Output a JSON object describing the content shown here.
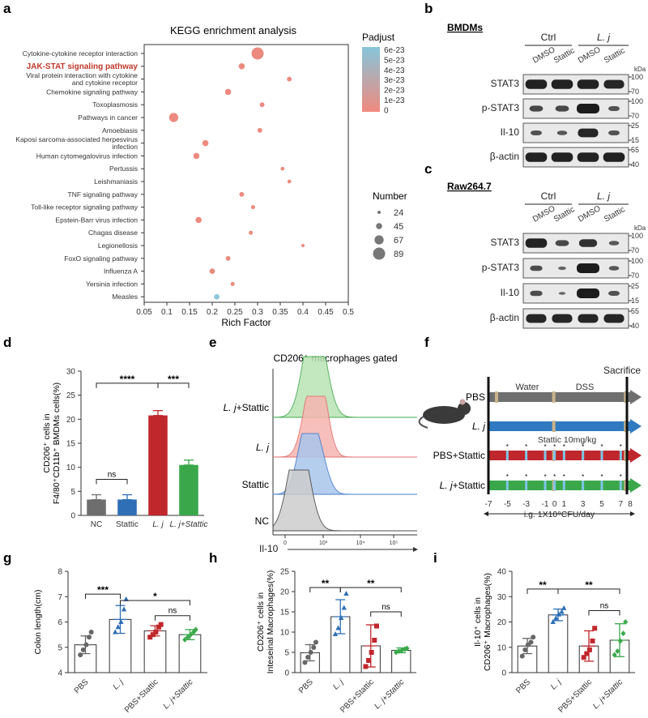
{
  "panels": {
    "a": "a",
    "b": "b",
    "c": "c",
    "d": "d",
    "e": "e",
    "f": "f",
    "g": "g",
    "h": "h",
    "i": "i"
  },
  "kegg": {
    "title": "KEGG enrichment analysis",
    "xlabel": "Rich Factor",
    "x_ticks": [
      "0.05",
      "0.1",
      "0.15",
      "0.2",
      "0.25",
      "0.3",
      "0.35",
      "0.4",
      "0.45",
      "0.5"
    ],
    "padj_title": "Padjust",
    "padj_ticks": [
      "6e-23",
      "5e-23",
      "4e-23",
      "3e-23",
      "2e-23",
      "1e-23",
      "0"
    ],
    "number_title": "Number",
    "number_ticks": [
      "24",
      "45",
      "67",
      "89"
    ],
    "highlight_color": "#c0392b"
  },
  "chart_data": [
    {
      "type": "scatter",
      "title": "KEGG enrichment analysis",
      "xlabel": "Rich Factor",
      "xlim": [
        0.05,
        0.5
      ],
      "points": [
        {
          "pathway": "Cytokine-cytokine receptor interaction",
          "rich": 0.3,
          "size": 89,
          "padj": 1e-23
        },
        {
          "pathway": "JAK-STAT signaling pathway",
          "rich": 0.265,
          "size": 45,
          "padj": 1e-23,
          "highlight": true
        },
        {
          "pathway": "Viral protein interaction with cytokine and cytokine receptor",
          "rich": 0.37,
          "size": 35,
          "padj": 1e-23
        },
        {
          "pathway": "Chemokine signaling pathway",
          "rich": 0.235,
          "size": 45,
          "padj": 1e-23
        },
        {
          "pathway": "Toxoplasmosis",
          "rich": 0.31,
          "size": 35,
          "padj": 1e-23
        },
        {
          "pathway": "Pathways in cancer",
          "rich": 0.115,
          "size": 67,
          "padj": 1e-23
        },
        {
          "pathway": "Amoebiasis",
          "rich": 0.305,
          "size": 35,
          "padj": 1e-23
        },
        {
          "pathway": "Kaposi sarcoma-associated herpesvirus infection",
          "rich": 0.185,
          "size": 45,
          "padj": 1e-23
        },
        {
          "pathway": "Human cytomegalovirus infection",
          "rich": 0.165,
          "size": 45,
          "padj": 1e-23
        },
        {
          "pathway": "Pertussis",
          "rich": 0.355,
          "size": 28,
          "padj": 1e-23
        },
        {
          "pathway": "Leishmaniasis",
          "rich": 0.37,
          "size": 28,
          "padj": 1e-23
        },
        {
          "pathway": "TNF signaling pathway",
          "rich": 0.265,
          "size": 35,
          "padj": 1e-23
        },
        {
          "pathway": "Toll-like receptor signaling pathway",
          "rich": 0.29,
          "size": 30,
          "padj": 1e-23
        },
        {
          "pathway": "Epstein-Barr virus infection",
          "rich": 0.17,
          "size": 45,
          "padj": 1e-23
        },
        {
          "pathway": "Chagas disease",
          "rich": 0.285,
          "size": 30,
          "padj": 1e-23
        },
        {
          "pathway": "Legionellosis",
          "rich": 0.4,
          "size": 24,
          "padj": 1e-23
        },
        {
          "pathway": "FoxO signaling pathway",
          "rich": 0.235,
          "size": 35,
          "padj": 1e-23
        },
        {
          "pathway": "Influenza A",
          "rich": 0.2,
          "size": 40,
          "padj": 1e-23
        },
        {
          "pathway": "Yersinia infection",
          "rich": 0.245,
          "size": 30,
          "padj": 1e-23
        },
        {
          "pathway": "Measles",
          "rich": 0.21,
          "size": 40,
          "padj": 6e-23
        }
      ]
    },
    {
      "type": "bar",
      "title": "d",
      "ylabel": "CD206+ cells in F4/80+CD11b+ BMDMs cells(%)",
      "categories": [
        "NC",
        "Stattic",
        "L. j",
        "L. j+Stattic"
      ],
      "values": [
        3.3,
        3.3,
        20.8,
        10.5
      ],
      "errors": [
        1.0,
        1.0,
        1.0,
        1.0
      ],
      "colors": [
        "#6e6e6e",
        "#2f6fb5",
        "#c0272d",
        "#3aa84a"
      ],
      "ylim": [
        0,
        30
      ],
      "yticks": [
        0,
        5,
        10,
        15,
        20,
        25,
        30
      ],
      "significance": [
        "****",
        "***",
        "ns"
      ]
    },
    {
      "type": "bar",
      "title": "g",
      "ylabel": "Colon length(cm)",
      "categories": [
        "PBS",
        "L. j",
        "PBS+Stattic",
        "L. j+Stattic"
      ],
      "values": [
        5.1,
        6.1,
        5.65,
        5.5
      ],
      "errors": [
        0.35,
        0.55,
        0.2,
        0.2
      ],
      "ylim": [
        4,
        8
      ],
      "yticks": [
        4,
        5,
        6,
        7,
        8
      ],
      "significance": [
        "***",
        "*",
        "ns"
      ],
      "points": [
        [
          4.7,
          4.9,
          5.1,
          5.4,
          5.6
        ],
        [
          5.6,
          5.8,
          6.0,
          6.5,
          6.9
        ],
        [
          5.4,
          5.5,
          5.6,
          5.8,
          5.9
        ],
        [
          5.3,
          5.4,
          5.5,
          5.6,
          5.7
        ]
      ]
    },
    {
      "type": "bar",
      "title": "h",
      "ylabel": "CD206+ cells in Inteseinal Macrophages(%)",
      "categories": [
        "PBS",
        "L. j",
        "PBS+Stattic",
        "L. j+Stattic"
      ],
      "values": [
        4.9,
        13.8,
        6.6,
        5.5
      ],
      "errors": [
        2.0,
        4.2,
        5.2,
        0.6
      ],
      "ylim": [
        0,
        25
      ],
      "yticks": [
        0,
        5,
        10,
        15,
        20,
        25
      ],
      "significance": [
        "**",
        "**",
        "ns"
      ],
      "points": [
        [
          2.5,
          3.8,
          5.0,
          6.2,
          7.5
        ],
        [
          9.5,
          11.0,
          13.5,
          16.0,
          19.5
        ],
        [
          1.5,
          3.0,
          5.0,
          8.0,
          11.5
        ],
        [
          5.0,
          5.3,
          5.5,
          5.8,
          6.0
        ]
      ]
    },
    {
      "type": "bar",
      "title": "i",
      "ylabel": "Il-10+ cells in CD206+ Macrophages(%)",
      "categories": [
        "PBS",
        "L. j",
        "PBS+Stattic",
        "L. j+Stattic"
      ],
      "values": [
        10.5,
        22.8,
        10.5,
        12.8
      ],
      "errors": [
        3.0,
        2.3,
        6.0,
        6.5
      ],
      "ylim": [
        0,
        40
      ],
      "yticks": [
        0,
        10,
        20,
        30,
        40
      ],
      "significance": [
        "**",
        "**",
        "ns"
      ],
      "points": [
        [
          6.5,
          9.0,
          11.0,
          12.0,
          14.0
        ],
        [
          20.0,
          21.5,
          23.0,
          24.0,
          25.5
        ],
        [
          6.0,
          7.5,
          9.0,
          12.5,
          17.5
        ],
        [
          7.0,
          8.5,
          12.5,
          15.5,
          20.0
        ]
      ]
    }
  ],
  "blot_b": {
    "cell": "BMDMs",
    "ctrl": "Ctrl",
    "lj": "L. j",
    "lanes": [
      "DMSO",
      "Stattic",
      "DMSO",
      "Stattic"
    ],
    "rows": [
      "STAT3",
      "p-STAT3",
      "Il-10",
      "β-actin"
    ],
    "kda": "kDa",
    "markers": [
      [
        "100",
        "70"
      ],
      [
        "100",
        "70"
      ],
      [
        "25",
        "15"
      ],
      [
        "55",
        "40"
      ]
    ]
  },
  "blot_c": {
    "cell": "Raw264.7",
    "ctrl": "Ctrl",
    "lj": "L. j",
    "lanes": [
      "DMSO",
      "Stattic",
      "DMSO",
      "Stattic"
    ],
    "rows": [
      "STAT3",
      "p-STAT3",
      "Il-10",
      "β-actin"
    ],
    "kda": "kDa",
    "markers": [
      [
        "100",
        "70"
      ],
      [
        "100",
        "70"
      ],
      [
        "25",
        "15"
      ],
      [
        "55",
        "40"
      ]
    ]
  },
  "flow_e": {
    "title": "CD206⁺ macrophages gated",
    "groups": [
      "L. j+Stattic",
      "L. j",
      "Stattic",
      "NC"
    ],
    "xlabel": "Il-10",
    "xticks": [
      "0",
      "10³",
      "10⁴",
      "10⁵"
    ]
  },
  "schema_f": {
    "sacrifice": "Sacrifice",
    "water": "Water",
    "dss": "DSS",
    "stattic_label": "Stattic 10mg/kg",
    "groups": [
      "PBS",
      "L. j",
      "PBS+Stattic",
      "L. j+Stattic"
    ],
    "days": [
      "-7",
      "-5",
      "-3",
      "-1",
      "0",
      "1",
      "3",
      "5",
      "7",
      "8"
    ],
    "gavage": "i.g. 1X10⁹CFU/day"
  }
}
